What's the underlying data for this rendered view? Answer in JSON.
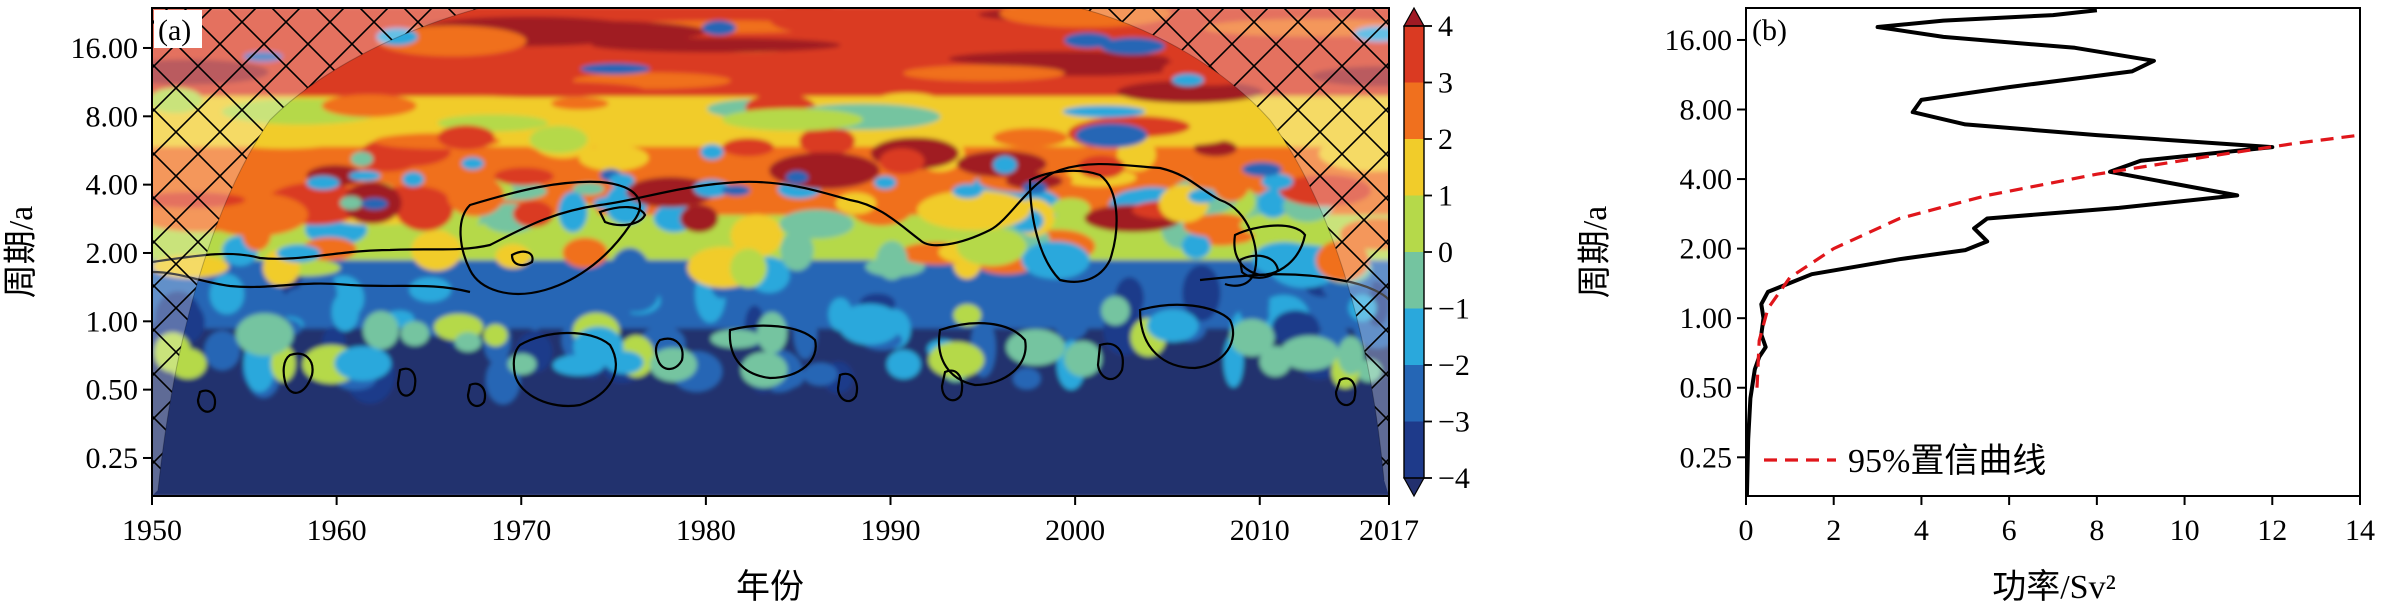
{
  "chart_data": [
    {
      "type": "heatmap",
      "panel_label": "(a)",
      "xlabel": "年份",
      "ylabel": "周期/a",
      "x_ticks": [
        "1950",
        "1960",
        "1970",
        "1980",
        "1990",
        "2000",
        "2010",
        "2017"
      ],
      "x_tick_values": [
        1950,
        1960,
        1970,
        1980,
        1990,
        2000,
        2010,
        2017
      ],
      "xlim": [
        1950,
        2017
      ],
      "y_scale": "log2",
      "y_ticks": [
        "0.25",
        "0.50",
        "1.00",
        "2.00",
        "4.00",
        "8.00",
        "16.00"
      ],
      "y_tick_values": [
        0.25,
        0.5,
        1,
        2,
        4,
        8,
        16
      ],
      "ylim": [
        0.17,
        24
      ],
      "colorbar": {
        "ticks": [
          "-4",
          "-3",
          "-2",
          "-1",
          "0",
          "1",
          "2",
          "3",
          "4"
        ],
        "tick_values": [
          -4,
          -3,
          -2,
          -1,
          0,
          1,
          2,
          3,
          4
        ],
        "extend": "both",
        "levels": [
          {
            "from": -99,
            "to": -4,
            "color": "#23306e"
          },
          {
            "from": -4,
            "to": -3,
            "color": "#1e3a8a"
          },
          {
            "from": -3,
            "to": -2,
            "color": "#2566b5"
          },
          {
            "from": -2,
            "to": -1,
            "color": "#2aa8dc"
          },
          {
            "from": -1,
            "to": 0,
            "color": "#74c4a0"
          },
          {
            "from": 0,
            "to": 1,
            "color": "#b5d94a"
          },
          {
            "from": 1,
            "to": 2,
            "color": "#f1cc2a"
          },
          {
            "from": 2,
            "to": 3,
            "color": "#f0701e"
          },
          {
            "from": 3,
            "to": 4,
            "color": "#da3a22"
          },
          {
            "from": 4,
            "to": 99,
            "color": "#a01a24"
          }
        ]
      },
      "regions": [
        {
          "period_from": 0.17,
          "period_to": 0.95,
          "value": -4.3,
          "description": "mostly dark blue"
        },
        {
          "period_from": 0.95,
          "period_to": 1.9,
          "value": -2.5,
          "description": "blue/cyan patches"
        },
        {
          "period_from": 1.9,
          "period_to": 3.0,
          "value": 0.5,
          "description": "green/yellow mixed"
        },
        {
          "period_from": 3.0,
          "period_to": 6.0,
          "value": 2.5,
          "description": "orange/red with blue spots"
        },
        {
          "period_from": 6.0,
          "period_to": 10.0,
          "value": 1.0,
          "description": "yellow/blue band"
        },
        {
          "period_from": 10.0,
          "period_to": 24.0,
          "value": 3.5,
          "description": "red/orange band"
        }
      ]
    },
    {
      "type": "line",
      "panel_label": "(b)",
      "xlabel": "功率/Sv²",
      "ylabel": "周期/a",
      "xlim": [
        0,
        14
      ],
      "x_ticks": [
        "0",
        "2",
        "4",
        "6",
        "8",
        "10",
        "12",
        "14"
      ],
      "x_tick_values": [
        0,
        2,
        4,
        6,
        8,
        10,
        12,
        14
      ],
      "y_scale": "log2",
      "y_ticks": [
        "0.25",
        "0.50",
        "1.00",
        "2.00",
        "4.00",
        "8.00",
        "16.00"
      ],
      "y_tick_values": [
        0.25,
        0.5,
        1,
        2,
        4,
        8,
        16
      ],
      "ylim": [
        0.17,
        22
      ],
      "legend_position": "lower-left",
      "series": [
        {
          "color": "#000000",
          "style": "solid",
          "points": [
            [
              0.02,
              0.17
            ],
            [
              0.05,
              0.3
            ],
            [
              0.1,
              0.45
            ],
            [
              0.2,
              0.6
            ],
            [
              0.3,
              0.68
            ],
            [
              0.45,
              0.75
            ],
            [
              0.35,
              0.85
            ],
            [
              0.4,
              1.0
            ],
            [
              0.35,
              1.15
            ],
            [
              0.5,
              1.3
            ],
            [
              1.5,
              1.55
            ],
            [
              3.5,
              1.8
            ],
            [
              5.0,
              1.97
            ],
            [
              5.5,
              2.15
            ],
            [
              5.2,
              2.45
            ],
            [
              5.5,
              2.7
            ],
            [
              8.5,
              3.0
            ],
            [
              11.2,
              3.4
            ],
            [
              9.5,
              3.9
            ],
            [
              8.3,
              4.3
            ],
            [
              9.0,
              4.8
            ],
            [
              12.0,
              5.5
            ],
            [
              8.0,
              6.2
            ],
            [
              5.0,
              6.9
            ],
            [
              3.8,
              7.8
            ],
            [
              4.0,
              8.8
            ],
            [
              6.0,
              10.0
            ],
            [
              8.8,
              11.7
            ],
            [
              9.3,
              13.0
            ],
            [
              7.5,
              14.8
            ],
            [
              4.5,
              16.5
            ],
            [
              3.0,
              18.2
            ],
            [
              4.5,
              19.4
            ],
            [
              7.0,
              20.5
            ],
            [
              8.0,
              21.5
            ]
          ]
        },
        {
          "name": "95%置信曲线",
          "color": "#e0161b",
          "style": "dashed",
          "points": [
            [
              0.25,
              0.5
            ],
            [
              0.3,
              0.8
            ],
            [
              0.5,
              1.1
            ],
            [
              1.0,
              1.5
            ],
            [
              2.0,
              2.0
            ],
            [
              3.5,
              2.7
            ],
            [
              5.5,
              3.4
            ],
            [
              8.0,
              4.2
            ],
            [
              10.5,
              5.0
            ],
            [
              12.5,
              5.7
            ],
            [
              14.0,
              6.2
            ]
          ]
        }
      ]
    }
  ]
}
